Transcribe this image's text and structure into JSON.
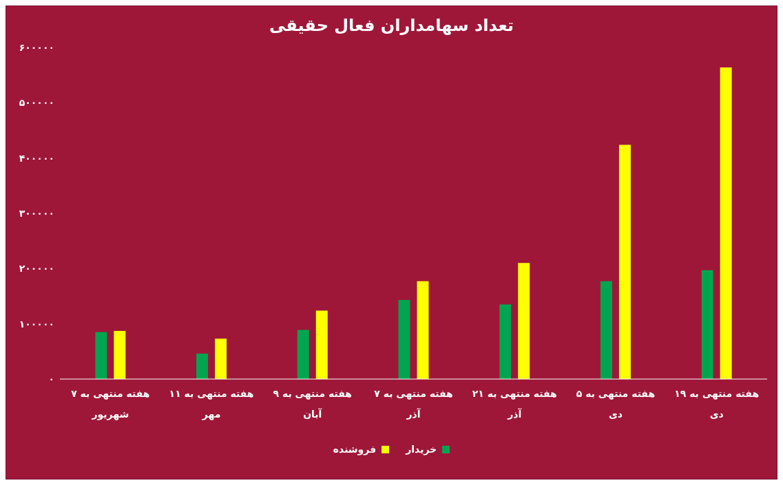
{
  "chart_data": {
    "type": "bar",
    "title": "تعداد سهامداران فعال حقیقی",
    "categories": [
      "هفته منتهی به ۷ شهریور",
      "هفته منتهی به ۱۱ مهر",
      "هفته منتهی به ۹ آبان",
      "هفته منتهی به ۷ آذر",
      "هفته منتهی به ۲۱ آذر",
      "هفته منتهی به ۵ دی",
      "هفته منتهی به ۱۹ دی"
    ],
    "series": [
      {
        "name": "خریدار",
        "color": "#00a54f",
        "values": [
          85000,
          46000,
          89000,
          143000,
          135000,
          177000,
          197000
        ]
      },
      {
        "name": "فروشنده",
        "color": "#ffff00",
        "values": [
          87000,
          73000,
          124000,
          177000,
          210000,
          424000,
          564000
        ]
      }
    ],
    "ylim": [
      0,
      600000
    ],
    "yticks": [
      {
        "value": 0,
        "label": "۰"
      },
      {
        "value": 100000,
        "label": "۱۰۰۰۰۰"
      },
      {
        "value": 200000,
        "label": "۲۰۰۰۰۰"
      },
      {
        "value": 300000,
        "label": "۳۰۰۰۰۰"
      },
      {
        "value": 400000,
        "label": "۴۰۰۰۰۰"
      },
      {
        "value": 500000,
        "label": "۵۰۰۰۰۰"
      },
      {
        "value": 600000,
        "label": "۶۰۰۰۰۰"
      }
    ],
    "grid": false,
    "legend": "bottom"
  }
}
